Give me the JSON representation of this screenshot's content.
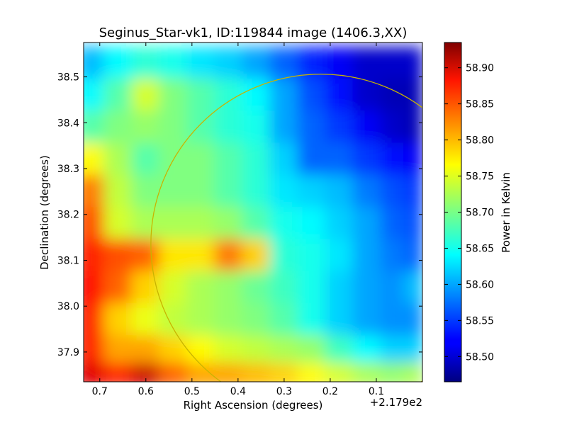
{
  "chart_data": {
    "type": "heatmap",
    "title": "Seginus_Star-vk1, ID:119844 image (1406.3,XX)",
    "xlabel": "Right Ascension (degrees)",
    "ylabel": "Declination (degrees)",
    "x_offset_label": "+2.179e2",
    "colorbar_label": "Power in Kelvin",
    "xlim": [
      0.735,
      0.0
    ],
    "ylim": [
      37.835,
      38.575
    ],
    "x_ticks": [
      0.7,
      0.6,
      0.5,
      0.4,
      0.3,
      0.2,
      0.1
    ],
    "x_tick_labels": [
      "0.7",
      "0.6",
      "0.5",
      "0.4",
      "0.3",
      "0.2",
      "0.1"
    ],
    "y_ticks": [
      37.9,
      38.0,
      38.1,
      38.2,
      38.3,
      38.4,
      38.5
    ],
    "y_tick_labels": [
      "37.9",
      "38.0",
      "38.1",
      "38.2",
      "38.3",
      "38.4",
      "38.5"
    ],
    "clim": [
      58.465,
      58.935
    ],
    "colorbar_ticks": [
      58.5,
      58.55,
      58.6,
      58.65,
      58.7,
      58.75,
      58.8,
      58.85,
      58.9
    ],
    "colorbar_tick_labels": [
      "58.50",
      "58.55",
      "58.60",
      "58.65",
      "58.70",
      "58.75",
      "58.80",
      "58.85",
      "58.90"
    ],
    "colormap": "jet",
    "grid": false,
    "circle": {
      "center_ra": 0.22,
      "center_dec": 38.135,
      "radius_deg": 0.37,
      "color": "#c8b400"
    },
    "field_values": {
      "ra": [
        0.72,
        0.66,
        0.6,
        0.54,
        0.48,
        0.42,
        0.36,
        0.3,
        0.24,
        0.18,
        0.12,
        0.06,
        0.02
      ],
      "dec": [
        38.53,
        38.46,
        38.39,
        38.32,
        38.25,
        38.18,
        38.11,
        38.04,
        37.97,
        37.9,
        37.85
      ],
      "rows": [
        [
          58.61,
          58.64,
          58.66,
          58.65,
          58.63,
          58.62,
          58.6,
          58.57,
          58.54,
          58.52,
          58.5,
          58.5,
          58.5
        ],
        [
          58.64,
          58.68,
          58.74,
          58.7,
          58.68,
          58.66,
          58.64,
          58.6,
          58.56,
          58.53,
          58.5,
          58.49,
          58.49
        ],
        [
          58.68,
          58.7,
          58.71,
          58.7,
          58.68,
          58.66,
          58.65,
          58.6,
          58.57,
          58.55,
          58.52,
          58.5,
          58.49
        ],
        [
          58.76,
          58.72,
          58.68,
          58.7,
          58.7,
          58.68,
          58.66,
          58.62,
          58.57,
          58.57,
          58.55,
          58.53,
          58.52
        ],
        [
          58.82,
          58.73,
          58.7,
          58.7,
          58.7,
          58.68,
          58.66,
          58.63,
          58.62,
          58.61,
          58.58,
          58.56,
          58.55
        ],
        [
          58.84,
          58.74,
          58.72,
          58.72,
          58.72,
          58.71,
          58.68,
          58.65,
          58.64,
          58.62,
          58.6,
          58.57,
          58.56
        ],
        [
          58.86,
          58.84,
          58.83,
          58.77,
          58.77,
          58.82,
          58.78,
          58.66,
          58.65,
          58.63,
          58.6,
          58.58,
          58.57
        ],
        [
          58.87,
          58.83,
          58.78,
          58.74,
          58.72,
          58.71,
          58.69,
          58.67,
          58.65,
          58.62,
          58.6,
          58.59,
          58.61
        ],
        [
          58.86,
          58.78,
          58.75,
          58.73,
          58.72,
          58.71,
          58.7,
          58.68,
          58.65,
          58.62,
          58.6,
          58.59,
          58.59
        ],
        [
          58.86,
          58.8,
          58.8,
          58.78,
          58.76,
          58.74,
          58.73,
          58.72,
          58.71,
          58.67,
          58.64,
          58.62,
          58.62
        ],
        [
          58.89,
          58.86,
          58.9,
          58.83,
          58.8,
          58.8,
          58.79,
          58.78,
          58.76,
          58.74,
          58.72,
          58.71,
          58.72
        ]
      ]
    }
  }
}
